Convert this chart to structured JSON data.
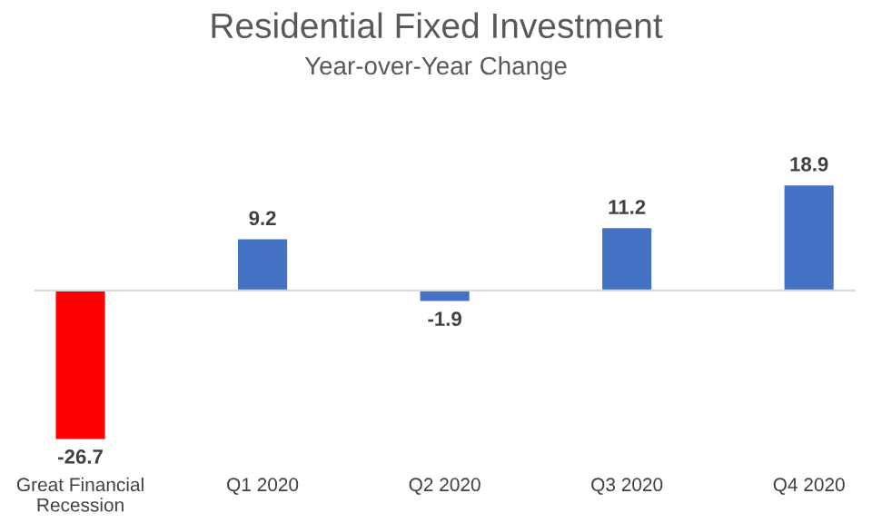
{
  "chart_data": {
    "type": "bar",
    "title": "Residential Fixed Investment",
    "subtitle": "Year-over-Year Change",
    "categories": [
      "Great Financial\nRecession",
      "Q1 2020",
      "Q2 2020",
      "Q3 2020",
      "Q4 2020"
    ],
    "values": [
      -26.7,
      9.2,
      -1.9,
      11.2,
      18.9
    ],
    "colors": [
      "#ff0000",
      "#4472c4",
      "#4472c4",
      "#4472c4",
      "#4472c4"
    ],
    "data_labels": true,
    "grid": false,
    "legend": false
  }
}
